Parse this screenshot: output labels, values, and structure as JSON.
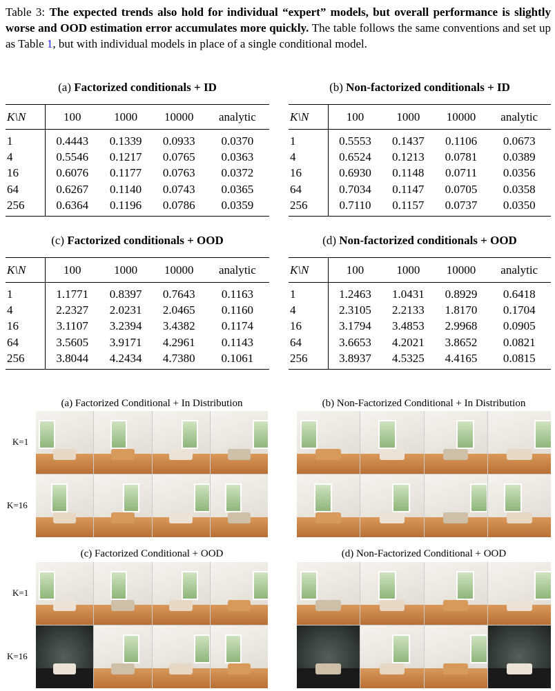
{
  "caption": {
    "label": "Table 3:",
    "bold": "The expected trends also hold for individual “expert” models, but overall performance is slightly worse and OOD estimation error accumulates more quickly.",
    "text": " The table follows the same conventions and set up as Table ",
    "ref": "1",
    "text_end": ", but with individual models in place of a single conditional model."
  },
  "tables": [
    {
      "label": "(a)",
      "title": "Factorized conditionals + ID",
      "header": [
        "K\\N",
        "100",
        "1000",
        "10000",
        "analytic"
      ],
      "rows": [
        [
          "1",
          "0.4443",
          "0.1339",
          "0.0933",
          "0.0370"
        ],
        [
          "4",
          "0.5546",
          "0.1217",
          "0.0765",
          "0.0363"
        ],
        [
          "16",
          "0.6076",
          "0.1177",
          "0.0763",
          "0.0372"
        ],
        [
          "64",
          "0.6267",
          "0.1140",
          "0.0743",
          "0.0365"
        ],
        [
          "256",
          "0.6364",
          "0.1196",
          "0.0786",
          "0.0359"
        ]
      ]
    },
    {
      "label": "(b)",
      "title": "Non-factorized conditionals + ID",
      "header": [
        "K\\N",
        "100",
        "1000",
        "10000",
        "analytic"
      ],
      "rows": [
        [
          "1",
          "0.5553",
          "0.1437",
          "0.1106",
          "0.0673"
        ],
        [
          "4",
          "0.6524",
          "0.1213",
          "0.0781",
          "0.0389"
        ],
        [
          "16",
          "0.6930",
          "0.1148",
          "0.0711",
          "0.0356"
        ],
        [
          "64",
          "0.7034",
          "0.1147",
          "0.0705",
          "0.0358"
        ],
        [
          "256",
          "0.7110",
          "0.1157",
          "0.0737",
          "0.0350"
        ]
      ]
    },
    {
      "label": "(c)",
      "title": "Factorized conditionals + OOD",
      "header": [
        "K\\N",
        "100",
        "1000",
        "10000",
        "analytic"
      ],
      "rows": [
        [
          "1",
          "1.1771",
          "0.8397",
          "0.7643",
          "0.1163"
        ],
        [
          "4",
          "2.2327",
          "2.0231",
          "2.0465",
          "0.1160"
        ],
        [
          "16",
          "3.1107",
          "3.2394",
          "3.4382",
          "0.1174"
        ],
        [
          "64",
          "3.5605",
          "3.9171",
          "4.2961",
          "0.1143"
        ],
        [
          "256",
          "3.8044",
          "4.2434",
          "4.7380",
          "0.1061"
        ]
      ]
    },
    {
      "label": "(d)",
      "title": "Non-factorized conditionals + OOD",
      "header": [
        "K\\N",
        "100",
        "1000",
        "10000",
        "analytic"
      ],
      "rows": [
        [
          "1",
          "1.2463",
          "1.0431",
          "0.8929",
          "0.6418"
        ],
        [
          "4",
          "2.3105",
          "2.2133",
          "1.8170",
          "0.1704"
        ],
        [
          "16",
          "3.1794",
          "3.4853",
          "2.9968",
          "0.0905"
        ],
        [
          "64",
          "3.6653",
          "4.2021",
          "3.8652",
          "0.0821"
        ],
        [
          "256",
          "3.8937",
          "4.5325",
          "4.4165",
          "0.0815"
        ]
      ]
    }
  ],
  "figure": {
    "panels": [
      {
        "title": "(a) Factorized Conditional + In Distribution",
        "row_labels": [
          "K=1",
          "K=16"
        ]
      },
      {
        "title": "(b) Non-Factorized Conditional + In Distribution",
        "row_labels": []
      },
      {
        "title": "(c) Factorized Conditional + OOD",
        "row_labels": [
          "K=1",
          "K=16"
        ]
      },
      {
        "title": "(d) Non-Factorized Conditional + OOD",
        "row_labels": []
      }
    ]
  }
}
